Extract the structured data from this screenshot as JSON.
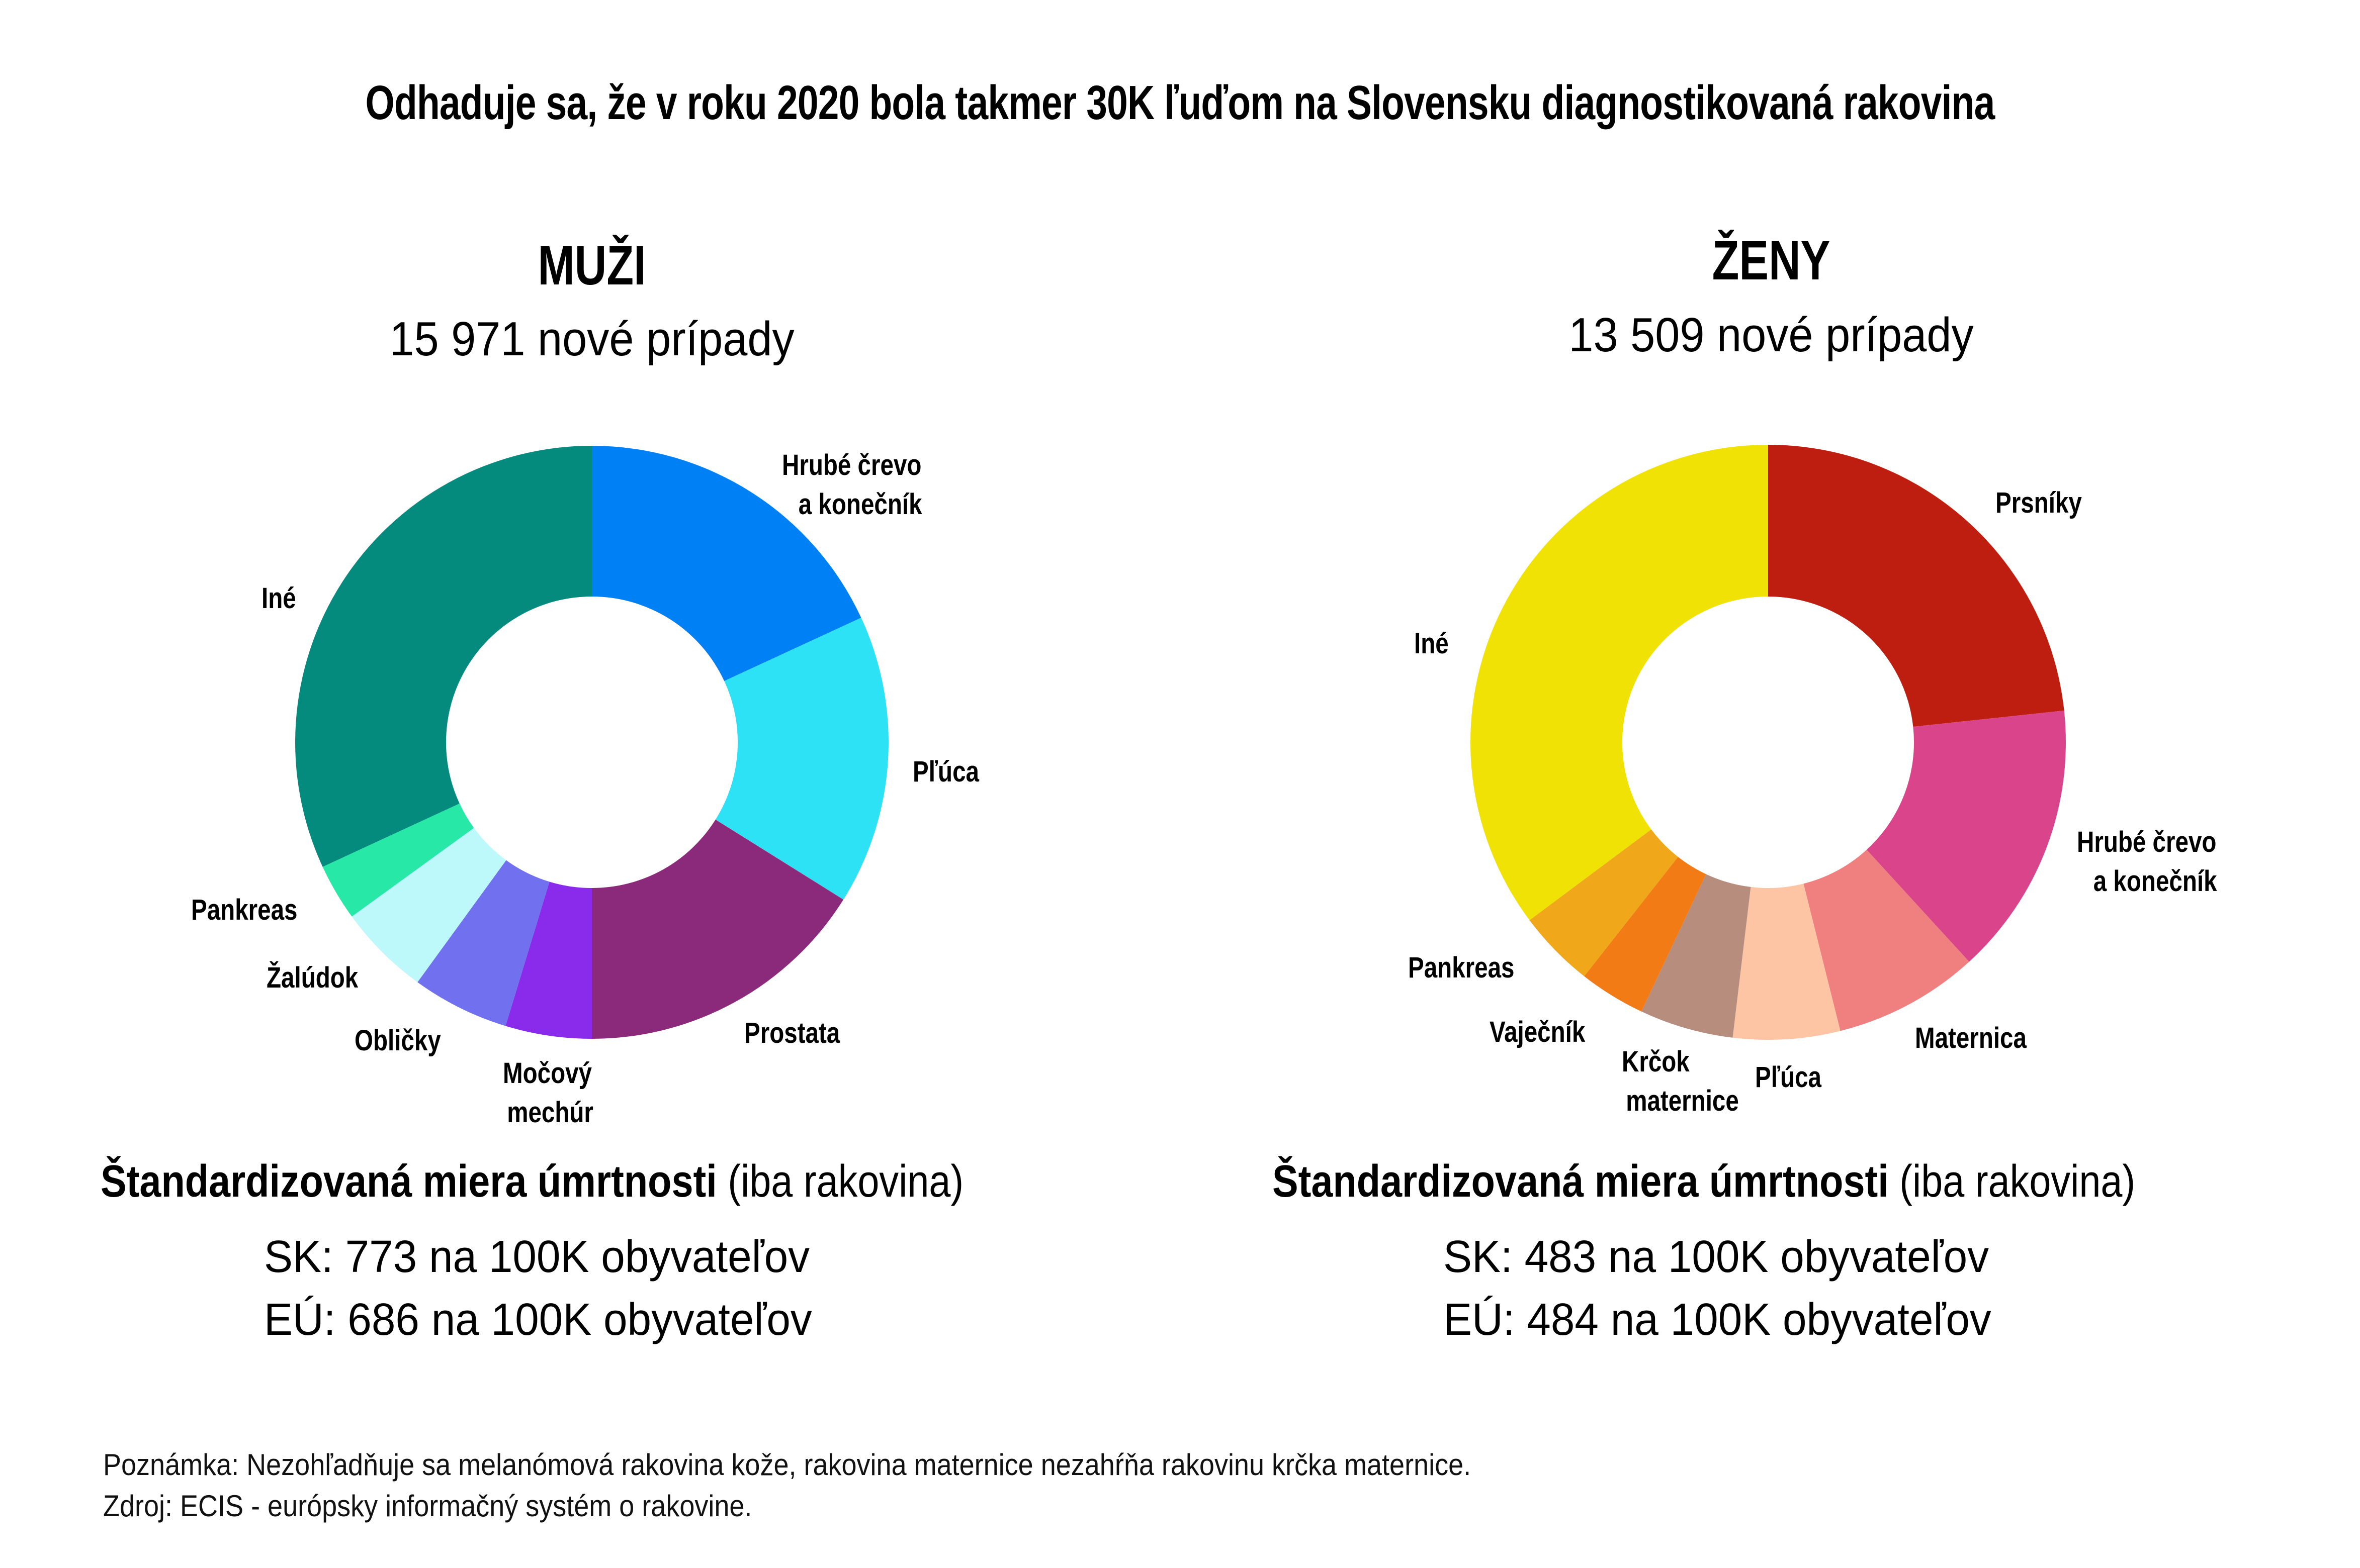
{
  "title": "Odhaduje sa, že v roku 2020 bola takmer 30K ľuďom na Slovensku diagnostikovaná rakovina",
  "men": {
    "heading": "MUŽI",
    "subheading": "15 971 nové prípady",
    "stats": {
      "head_bold": "Štandardizovaná miera úmrtnosti",
      "head_light": " (iba rakovina)",
      "sk": "SK: 773 na 100K obyvateľov",
      "eu": "EÚ: 686 na 100K obyvateľov"
    }
  },
  "women": {
    "heading": "ŽENY",
    "subheading": "13 509 nové prípady",
    "stats": {
      "head_bold": "Štandardizovaná miera úmrtnosti",
      "head_light": " (iba rakovina)",
      "sk": "SK: 483 na 100K obyvateľov",
      "eu": "EÚ: 484 na 100K obyvateľov"
    }
  },
  "footnote": {
    "note": "Poznámka: Nezohľadňuje sa melanómová rakovina kože, rakovina maternice nezahŕňa rakovinu krčka maternice.",
    "source": "Zdroj: ECIS - európsky informačný systém o rakovine."
  },
  "chart_data": [
    {
      "type": "pie",
      "subtype": "donut",
      "title": "MUŽI",
      "subtitle": "15 971 nové prípady",
      "unit": "percent (estimated from slice angles)",
      "start_angle_deg": 0,
      "direction": "clockwise",
      "categories": [
        "Hrubé črevo a konečník",
        "Pľúca",
        "Prostata",
        "Močový mechúr",
        "Obličky",
        "Žalúdok",
        "Pankreas",
        "Iné"
      ],
      "values": [
        18.1,
        15.8,
        16.1,
        4.7,
        5.3,
        5.0,
        3.1,
        31.9
      ],
      "colors": [
        "#0080F5",
        "#2EE2F5",
        "#8B2A7A",
        "#8A2BEB",
        "#7170EF",
        "#BDF8FA",
        "#27E8A7",
        "#058B7E"
      ],
      "label_lines": [
        [
          "Hrubé črevo",
          "a konečník"
        ],
        [
          "Pľúca"
        ],
        [
          "Prostata"
        ],
        [
          "Močový",
          "mechúr"
        ],
        [
          "Obličky"
        ],
        [
          "Žalúdok"
        ],
        [
          "Pankreas"
        ],
        [
          "Iné"
        ]
      ],
      "legend": "labels placed beside slices"
    },
    {
      "type": "pie",
      "subtype": "donut",
      "title": "ŽENY",
      "subtitle": "13 509 nové prípady",
      "unit": "percent (estimated from slice angles)",
      "start_angle_deg": 0,
      "direction": "clockwise",
      "categories": [
        "Prsníky",
        "Hrubé črevo a konečník",
        "Maternica",
        "Pľúca",
        "Krčok maternice",
        "Vaječník",
        "Pankreas",
        "Iné"
      ],
      "values": [
        23.3,
        14.9,
        7.9,
        5.8,
        5.1,
        3.6,
        4.2,
        35.2
      ],
      "colors": [
        "#BD1E10",
        "#D9448A",
        "#F08080",
        "#FEC5A5",
        "#B78D7E",
        "#F27B15",
        "#F0A719",
        "#F1E206"
      ],
      "label_lines": [
        [
          "Prsníky"
        ],
        [
          "Hrubé črevo",
          "a konečník"
        ],
        [
          "Maternica"
        ],
        [
          "Pľúca"
        ],
        [
          "Krčok",
          "maternice"
        ],
        [
          "Vaječník"
        ],
        [
          "Pankreas"
        ],
        [
          "Iné"
        ]
      ],
      "legend": "labels placed beside slices"
    }
  ]
}
